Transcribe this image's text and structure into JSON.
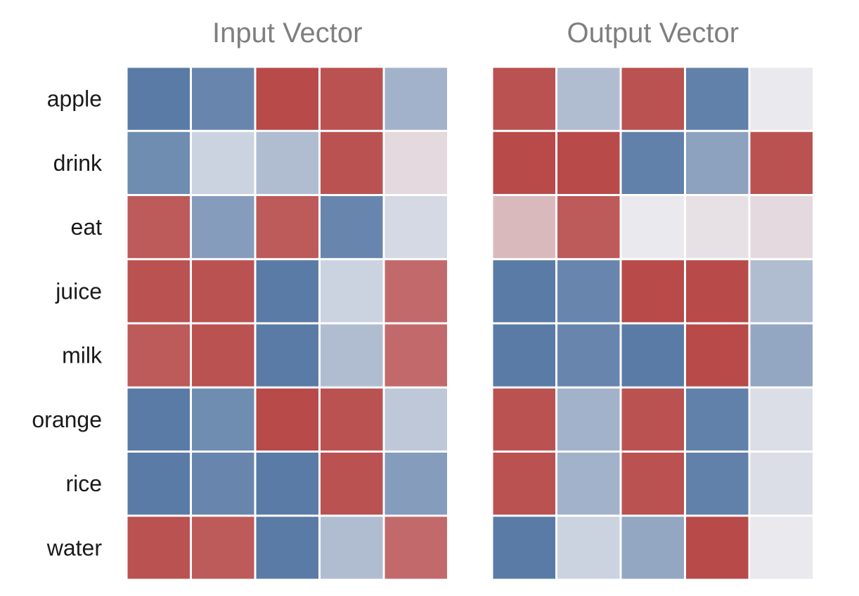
{
  "chart_data": {
    "type": "heatmap",
    "rows": [
      "apple",
      "drink",
      "eat",
      "juice",
      "milk",
      "orange",
      "rice",
      "water"
    ],
    "color_scale": {
      "min": -1,
      "max": 1,
      "negative": "#5a7ba6",
      "neutral": "#e9e9ee",
      "positive": "#b84a4a"
    },
    "panels": [
      {
        "title": "Input Vector",
        "values": [
          [
            -1.0,
            -0.9,
            1.0,
            0.95,
            -0.5
          ],
          [
            -0.85,
            -0.2,
            -0.4,
            0.95,
            0.1
          ],
          [
            0.9,
            -0.7,
            0.9,
            -0.9,
            -0.15
          ],
          [
            0.95,
            0.95,
            -1.0,
            -0.2,
            0.8
          ],
          [
            0.9,
            0.95,
            -1.0,
            -0.4,
            0.8
          ],
          [
            -1.0,
            -0.85,
            1.0,
            0.95,
            -0.3
          ],
          [
            -1.0,
            -0.9,
            -1.0,
            0.95,
            -0.7
          ],
          [
            0.95,
            0.9,
            -1.0,
            -0.4,
            0.8
          ]
        ]
      },
      {
        "title": "Output Vector",
        "values": [
          [
            0.95,
            -0.4,
            0.95,
            -0.95,
            0.0
          ],
          [
            1.0,
            1.0,
            -0.95,
            -0.65,
            0.95
          ],
          [
            0.3,
            0.9,
            0.0,
            0.05,
            0.1
          ],
          [
            -1.0,
            -0.9,
            1.0,
            1.0,
            -0.4
          ],
          [
            -1.0,
            -0.9,
            -1.0,
            1.0,
            -0.6
          ],
          [
            0.95,
            -0.5,
            0.95,
            -0.95,
            -0.1
          ],
          [
            0.95,
            -0.5,
            0.95,
            -0.95,
            -0.1
          ],
          [
            -1.0,
            -0.2,
            -0.6,
            1.0,
            0.0
          ]
        ]
      }
    ]
  }
}
